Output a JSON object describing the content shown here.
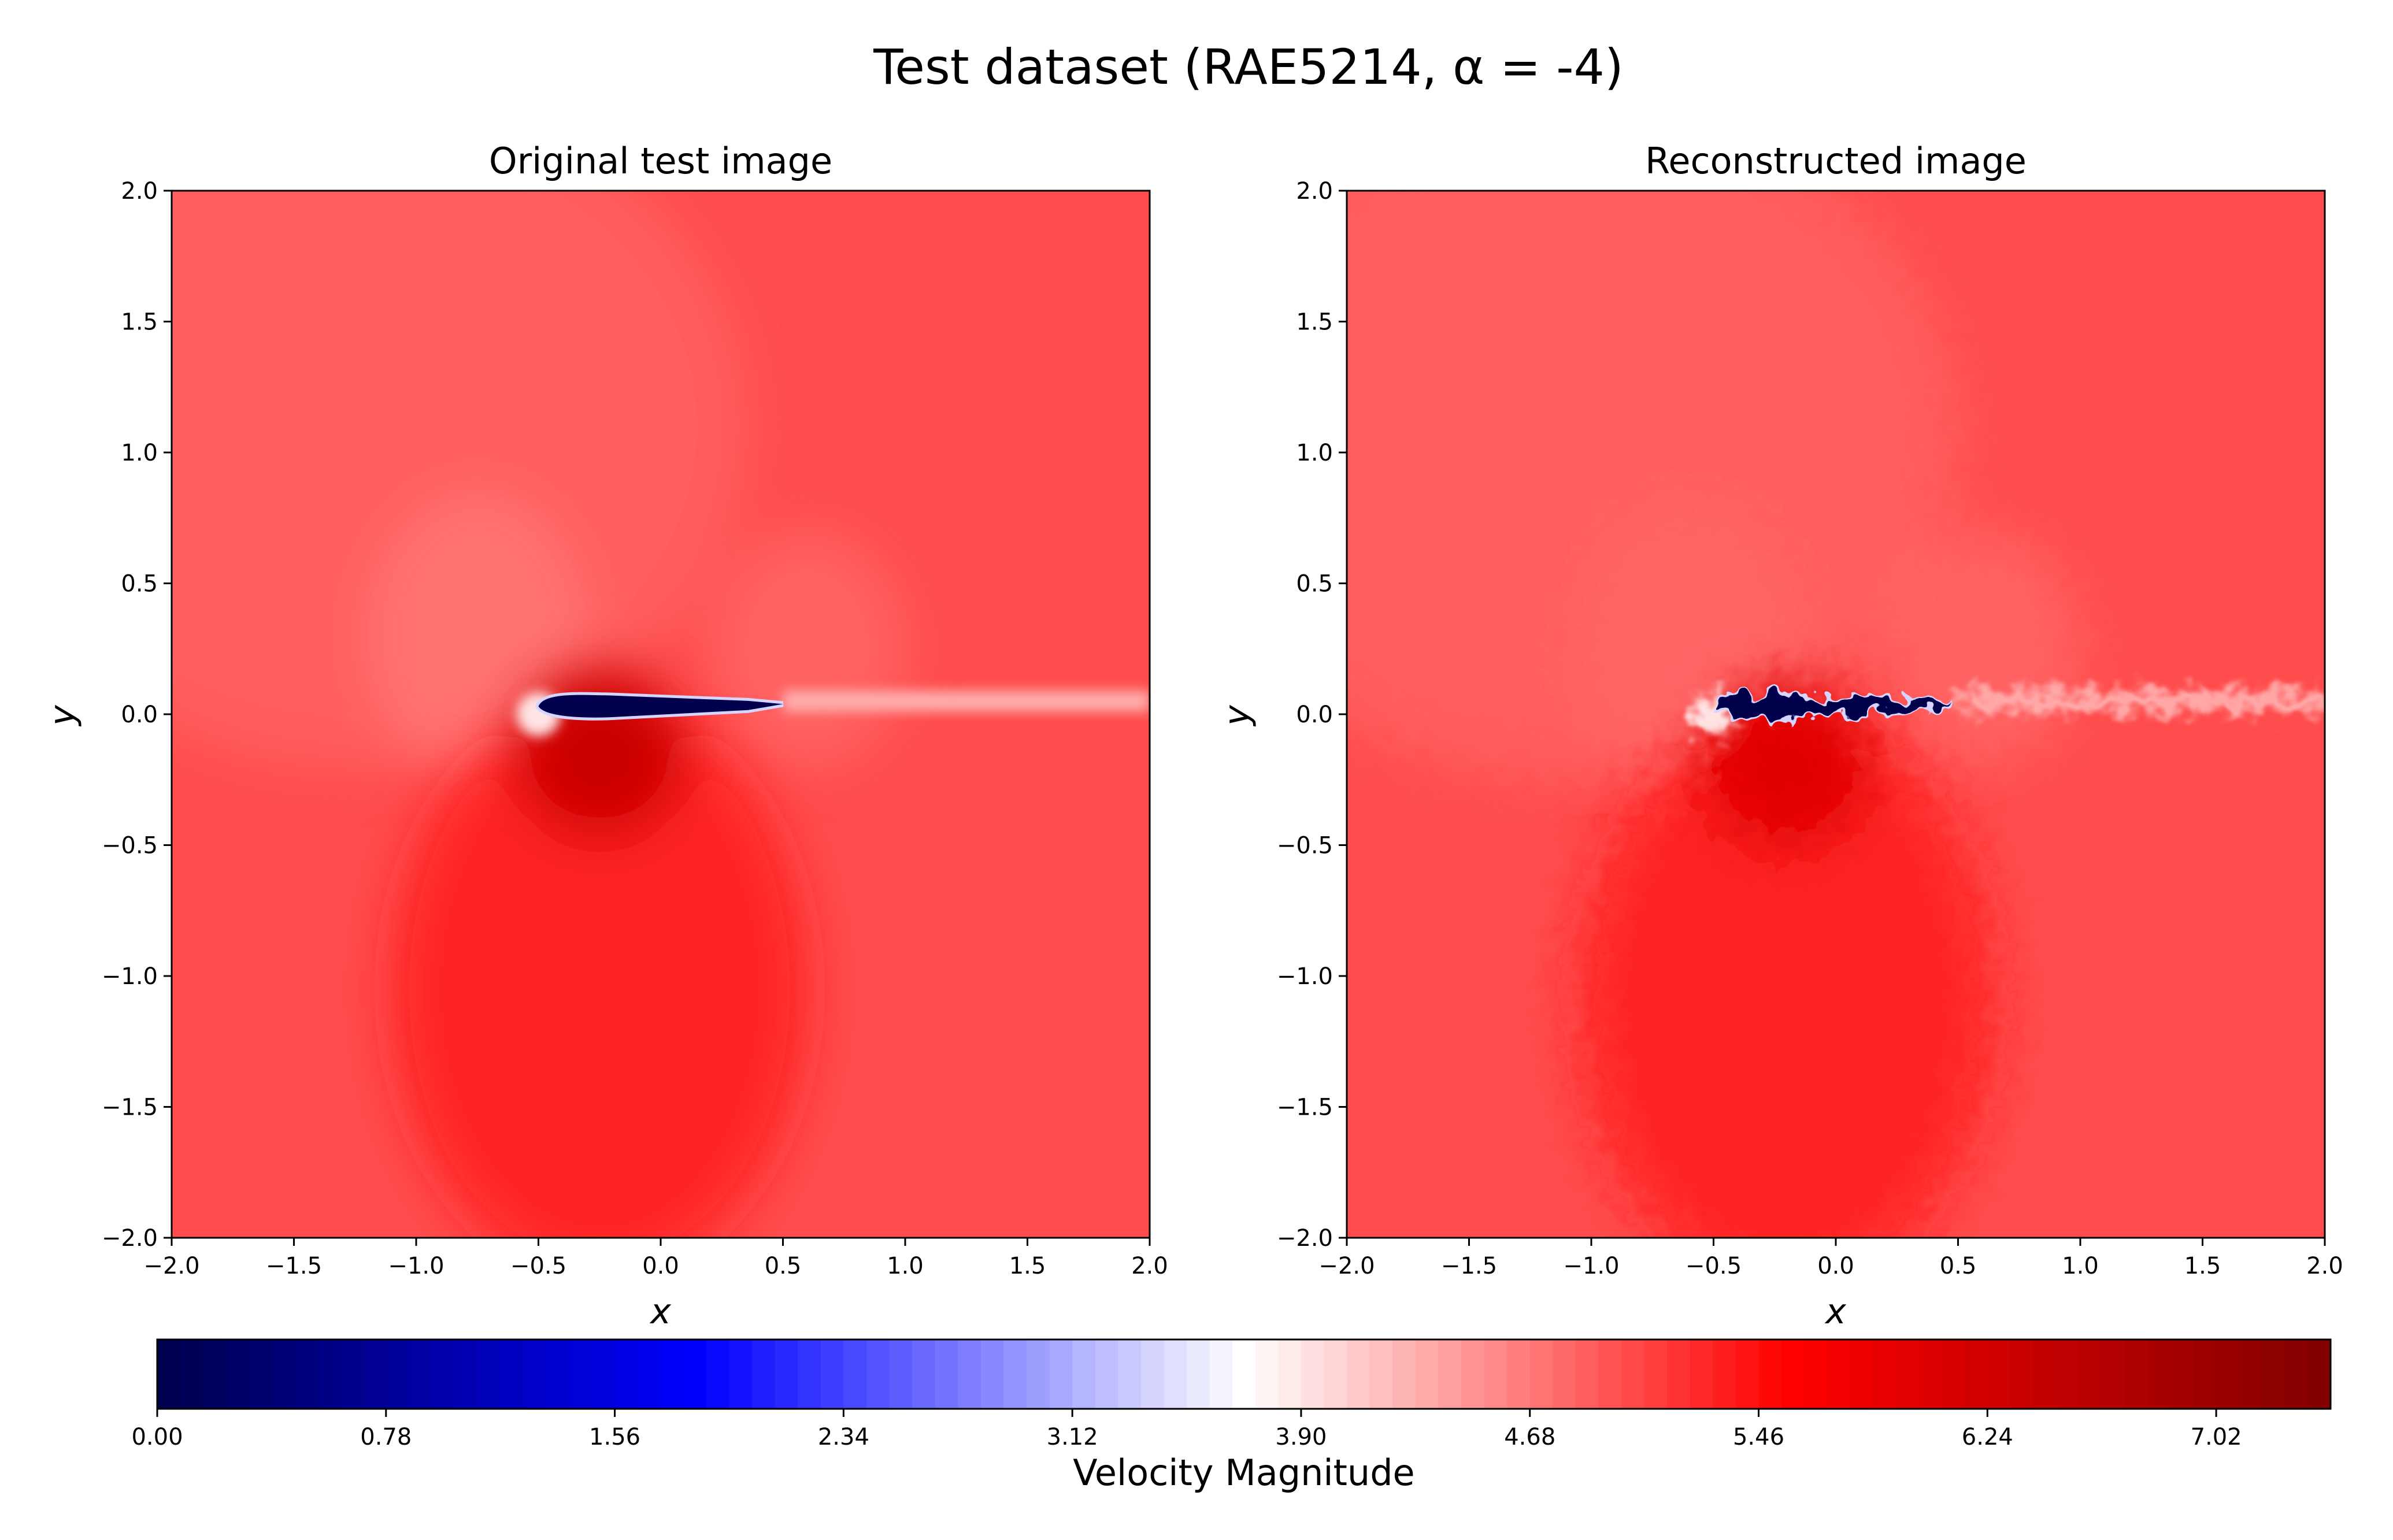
{
  "figure_title": "Test dataset (RAE5214, α = -4)",
  "colors": {
    "deep_blue": "#00004c",
    "blue": "#0000ff",
    "white": "#ffffff",
    "red": "#ff0000",
    "deep_red": "#800000",
    "freestream": "#ff6f6f"
  },
  "chart_data": [
    {
      "type": "heatmap",
      "title": "Original test image",
      "xlabel": "x",
      "ylabel": "y",
      "xlim": [
        -2.0,
        2.0
      ],
      "ylim": [
        -2.0,
        2.0
      ],
      "xticks": [
        "−2.0",
        "−1.5",
        "−1.0",
        "−0.5",
        "0.0",
        "0.5",
        "1.0",
        "1.5",
        "2.0"
      ],
      "yticks": [
        "2.0",
        "1.5",
        "1.0",
        "0.5",
        "0.0",
        "−0.5",
        "−1.0",
        "−1.5",
        "−2.0"
      ],
      "field": "Velocity Magnitude",
      "freestream_value": 5.0,
      "features": [
        {
          "kind": "airfoil_body",
          "x_range": [
            -0.5,
            0.5
          ],
          "y_center": 0.03,
          "value": 0.0
        },
        {
          "kind": "stagnation_point",
          "x": -0.5,
          "y": 0.0,
          "value": 3.9
        },
        {
          "kind": "wake",
          "x_range": [
            0.5,
            2.0
          ],
          "y": 0.05,
          "value": 4.3
        },
        {
          "kind": "acceleration_lobe",
          "x": -0.25,
          "y": -0.15,
          "value": 6.3
        },
        {
          "kind": "deceleration_lobe",
          "x": -0.75,
          "y": 0.3,
          "value": 4.7
        }
      ]
    },
    {
      "type": "heatmap",
      "title": "Reconstructed image",
      "xlabel": "x",
      "ylabel": "y",
      "xlim": [
        -2.0,
        2.0
      ],
      "ylim": [
        -2.0,
        2.0
      ],
      "xticks": [
        "−2.0",
        "−1.5",
        "−1.0",
        "−0.5",
        "0.0",
        "0.5",
        "1.0",
        "1.5",
        "2.0"
      ],
      "yticks": [
        "2.0",
        "1.5",
        "1.0",
        "0.5",
        "0.0",
        "−0.5",
        "−1.0",
        "−1.5",
        "−2.0"
      ],
      "field": "Velocity Magnitude",
      "freestream_value": 5.0,
      "features": [
        {
          "kind": "airfoil_body",
          "x_range": [
            -0.5,
            0.5
          ],
          "y_center": 0.03,
          "value": 0.0
        },
        {
          "kind": "stagnation_point",
          "x": -0.5,
          "y": 0.0,
          "value": 3.9
        },
        {
          "kind": "wake",
          "x_range": [
            0.5,
            2.0
          ],
          "y": 0.05,
          "value": 4.3
        },
        {
          "kind": "acceleration_lobe",
          "x": -0.2,
          "y": -0.2,
          "value": 6.0
        },
        {
          "kind": "deceleration_lobe",
          "x": -0.6,
          "y": 0.25,
          "value": 4.8
        }
      ]
    }
  ],
  "colorbar": {
    "label": "Velocity Magnitude",
    "range": [
      0.0,
      7.41
    ],
    "ticks": [
      "0.00",
      "0.78",
      "1.56",
      "2.34",
      "3.12",
      "3.90",
      "4.68",
      "5.46",
      "6.24",
      "7.02"
    ],
    "tick_values": [
      0.0,
      0.78,
      1.56,
      2.34,
      3.12,
      3.9,
      4.68,
      5.46,
      6.24,
      7.02
    ]
  }
}
